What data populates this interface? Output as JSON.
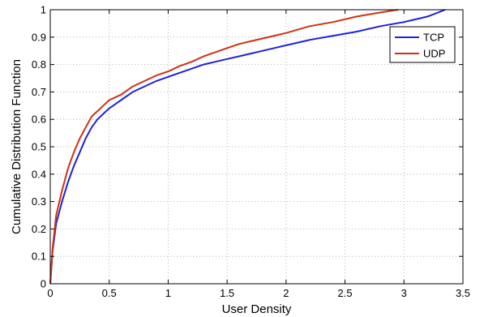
{
  "chart_data": {
    "type": "line",
    "title": "",
    "xlabel": "User Density",
    "ylabel": "Cumulative Distribution Function",
    "xlim": [
      0,
      3.5
    ],
    "ylim": [
      0,
      1
    ],
    "xticks": [
      "0",
      "0.5",
      "1",
      "1.5",
      "2",
      "2.5",
      "3",
      "3.5"
    ],
    "yticks": [
      "0",
      "0.1",
      "0.2",
      "0.3",
      "0.4",
      "0.5",
      "0.6",
      "0.7",
      "0.8",
      "0.9",
      "1"
    ],
    "grid": true,
    "legend_position": "top-right",
    "series": [
      {
        "name": "TCP",
        "color": "#1f1fe0",
        "x": [
          0,
          0.02,
          0.05,
          0.1,
          0.15,
          0.2,
          0.25,
          0.3,
          0.35,
          0.4,
          0.45,
          0.5,
          0.6,
          0.7,
          0.8,
          0.9,
          1.0,
          1.1,
          1.2,
          1.3,
          1.4,
          1.5,
          1.6,
          1.7,
          1.8,
          1.9,
          2.0,
          2.2,
          2.4,
          2.6,
          2.8,
          3.0,
          3.2,
          3.35
        ],
        "y": [
          0,
          0.12,
          0.22,
          0.3,
          0.37,
          0.43,
          0.48,
          0.53,
          0.57,
          0.6,
          0.62,
          0.64,
          0.67,
          0.7,
          0.72,
          0.74,
          0.755,
          0.77,
          0.785,
          0.8,
          0.81,
          0.82,
          0.83,
          0.84,
          0.85,
          0.86,
          0.87,
          0.89,
          0.905,
          0.92,
          0.94,
          0.955,
          0.975,
          1.0
        ]
      },
      {
        "name": "UDP",
        "color": "#d03010",
        "x": [
          0,
          0.02,
          0.05,
          0.1,
          0.15,
          0.2,
          0.25,
          0.3,
          0.35,
          0.4,
          0.45,
          0.5,
          0.6,
          0.7,
          0.8,
          0.9,
          1.0,
          1.1,
          1.2,
          1.3,
          1.4,
          1.5,
          1.6,
          1.7,
          1.8,
          1.9,
          2.0,
          2.2,
          2.4,
          2.6,
          2.8,
          2.95
        ],
        "y": [
          0,
          0.13,
          0.25,
          0.34,
          0.42,
          0.48,
          0.53,
          0.57,
          0.61,
          0.63,
          0.65,
          0.67,
          0.69,
          0.72,
          0.74,
          0.76,
          0.775,
          0.795,
          0.81,
          0.83,
          0.845,
          0.86,
          0.875,
          0.885,
          0.895,
          0.905,
          0.915,
          0.94,
          0.955,
          0.975,
          0.99,
          1.0
        ]
      }
    ]
  }
}
